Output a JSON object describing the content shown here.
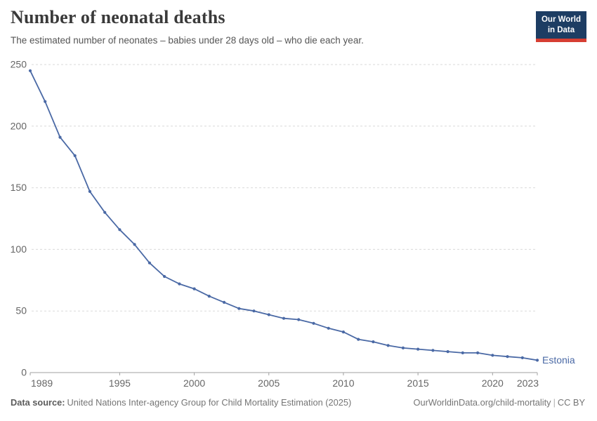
{
  "header": {
    "title": "Number of neonatal deaths",
    "subtitle": "The estimated number of neonates – babies under 28 days old – who die each year."
  },
  "logo": {
    "line1": "Our World",
    "line2": "in Data",
    "bg_color": "#1d3d63",
    "accent_color": "#d63e32"
  },
  "chart_data": {
    "type": "line",
    "title": "Number of neonatal deaths",
    "entity": "Estonia",
    "x": [
      1989,
      1990,
      1991,
      1992,
      1993,
      1994,
      1995,
      1996,
      1997,
      1998,
      1999,
      2000,
      2001,
      2002,
      2003,
      2004,
      2005,
      2006,
      2007,
      2008,
      2009,
      2010,
      2011,
      2012,
      2013,
      2014,
      2015,
      2016,
      2017,
      2018,
      2019,
      2020,
      2021,
      2022,
      2023
    ],
    "values": [
      245,
      220,
      191,
      176,
      147,
      130,
      116,
      104,
      89,
      78,
      72,
      68,
      62,
      57,
      52,
      50,
      47,
      44,
      43,
      40,
      36,
      33,
      27,
      25,
      22,
      20,
      19,
      18,
      17,
      16,
      16,
      14,
      13,
      12,
      10
    ],
    "xlabel": "",
    "ylabel": "",
    "ylim": [
      0,
      250
    ],
    "yticks": [
      0,
      50,
      100,
      150,
      200,
      250
    ],
    "xticks": [
      1989,
      1995,
      2000,
      2005,
      2010,
      2015,
      2020,
      2023
    ],
    "grid": "horizontal-dashed",
    "legend_position": "end-of-line-label",
    "line_color": "#4a69a5",
    "grid_color": "#d9d9d9",
    "axis_color": "#a0a0a0",
    "tick_label_color": "#666666"
  },
  "footer": {
    "datasource_label": "Data source:",
    "datasource": "United Nations Inter-agency Group for Child Mortality Estimation (2025)",
    "link": "OurWorldinData.org/child-mortality",
    "separator": "|",
    "license": "CC BY"
  }
}
